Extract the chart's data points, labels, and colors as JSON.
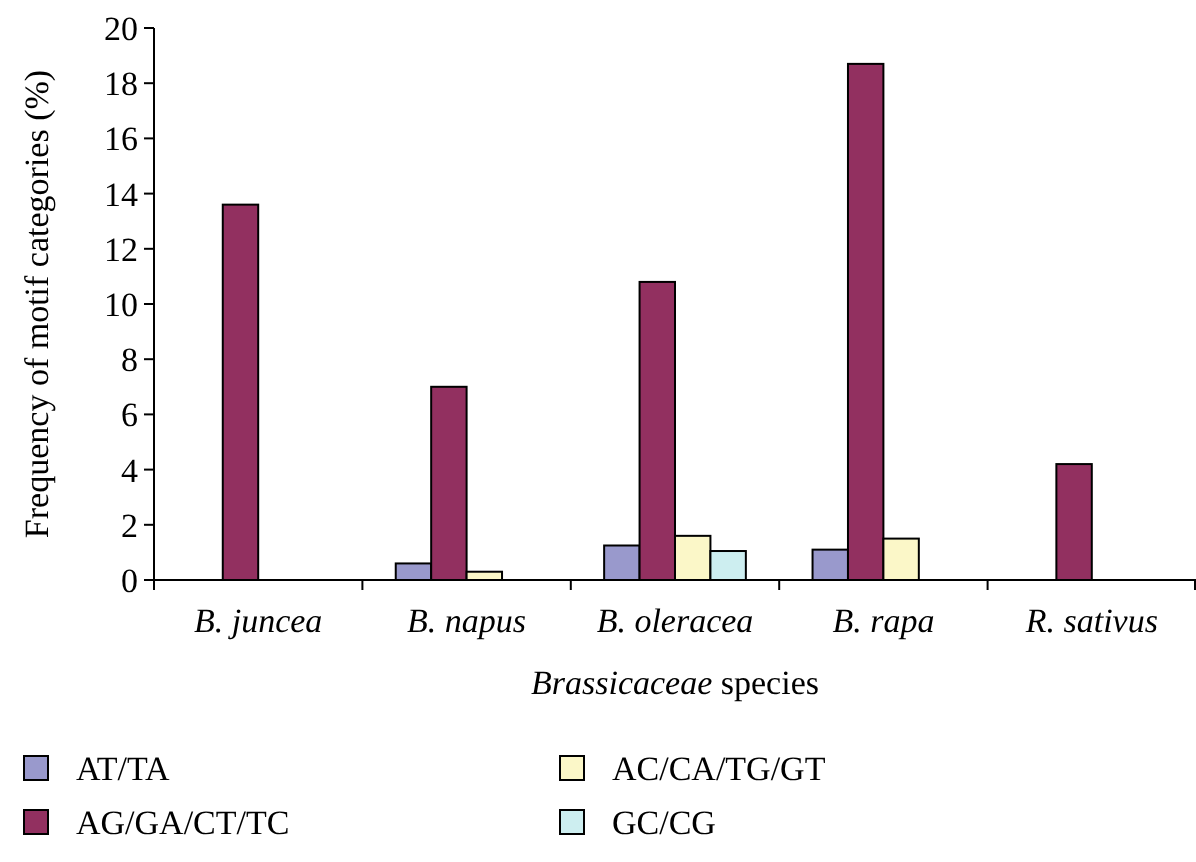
{
  "chart_data": {
    "type": "bar",
    "xlabel": "Brassicaceae species",
    "ylabel": "Frequency of motif categories (%)",
    "categories": [
      "B. juncea",
      "B. napus",
      "B. oleracea",
      "B. rapa",
      "R. sativus"
    ],
    "series": [
      {
        "name": "AT/TA",
        "color": "#9999cc",
        "values": [
          null,
          0.6,
          1.25,
          1.1,
          null
        ]
      },
      {
        "name": "AG/GA/CT/TC",
        "color": "#923060",
        "values": [
          13.6,
          7.0,
          10.8,
          18.7,
          4.2
        ]
      },
      {
        "name": "AC/CA/TG/GT",
        "color": "#fbf7c8",
        "values": [
          null,
          0.3,
          1.6,
          1.5,
          null
        ]
      },
      {
        "name": "GC/CG",
        "color": "#cdeef0",
        "values": [
          null,
          null,
          1.05,
          null,
          null
        ]
      }
    ],
    "ylim": [
      0,
      20
    ],
    "yticks": [
      0,
      2,
      4,
      6,
      8,
      10,
      12,
      14,
      16,
      18,
      20
    ],
    "grid": false,
    "legend": "bottom"
  }
}
